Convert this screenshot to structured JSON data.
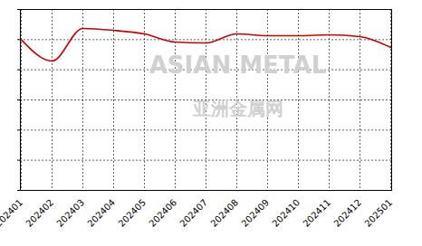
{
  "chart_data": {
    "type": "line",
    "categories": [
      "202401",
      "202402",
      "202403",
      "202404",
      "202405",
      "202406",
      "202407",
      "202408",
      "202409",
      "202410",
      "202411",
      "202412",
      "202501"
    ],
    "values": [
      5.0,
      4.29,
      5.37,
      5.31,
      5.19,
      4.92,
      4.89,
      5.19,
      5.13,
      5.13,
      5.16,
      5.1,
      4.74
    ],
    "color": "#cc0000",
    "ylim": [
      0,
      6
    ],
    "yticks": [
      0,
      1,
      2,
      3,
      4,
      5,
      6
    ],
    "grid": true,
    "tick_labels": "x",
    "annotations": [
      "ASIAN METAL",
      "亚洲金属网"
    ]
  }
}
